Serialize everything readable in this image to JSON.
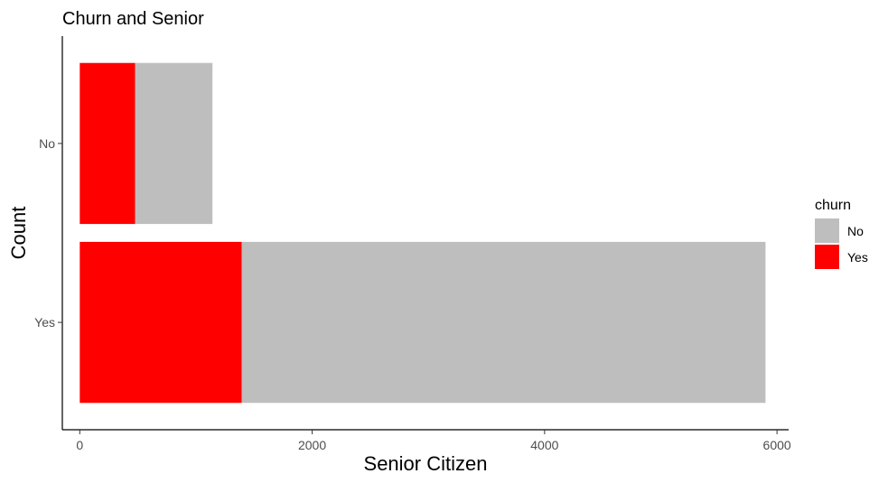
{
  "chart_data": {
    "type": "bar",
    "orientation": "horizontal",
    "stacked": true,
    "title": "Churn and Senior",
    "xlabel": "Senior Citizen",
    "ylabel": "Count",
    "categories": [
      "No",
      "Yes"
    ],
    "xlim": [
      -150,
      6100
    ],
    "xticks": [
      0,
      2000,
      4000,
      6000
    ],
    "xtick_labels": [
      "0",
      "2000",
      "4000",
      "6000"
    ],
    "series": [
      {
        "name": "Yes",
        "color": "#ff0000",
        "values": [
          476,
          1393
        ]
      },
      {
        "name": "No",
        "color": "#bebebe",
        "values": [
          666,
          4508
        ]
      }
    ],
    "legend": {
      "title": "churn",
      "position": "right",
      "items": [
        {
          "label": "No",
          "color": "#bebebe"
        },
        {
          "label": "Yes",
          "color": "#ff0000"
        }
      ]
    },
    "grid": false
  }
}
